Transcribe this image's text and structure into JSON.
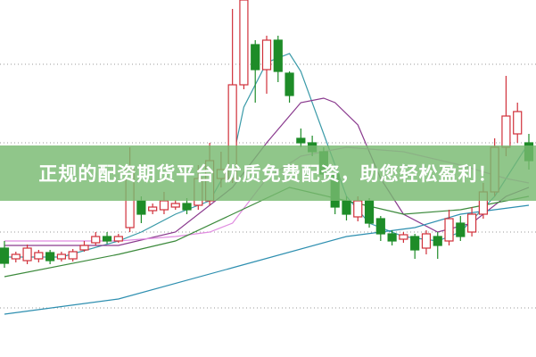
{
  "banner": {
    "text": "正规的配资期货平台 优质免费配资，助您轻松盈利！",
    "color": "#7ab970"
  },
  "chart_data": {
    "type": "candlestick",
    "title": "",
    "xlabel": "",
    "ylabel": "",
    "ylim": [
      0,
      400
    ],
    "grid": "dotted-horizontal",
    "colors": {
      "up": "#d0303a",
      "down": "#1e8c28"
    },
    "grid_levels": [
      328,
      240,
      140,
      55
    ],
    "candles": [
      [
        122,
        130,
        100,
        105
      ],
      [
        110,
        118,
        106,
        115
      ],
      [
        108,
        126,
        104,
        122
      ],
      [
        110,
        120,
        106,
        117
      ],
      [
        117,
        120,
        104,
        108
      ],
      [
        110,
        118,
        107,
        115
      ],
      [
        110,
        121,
        107,
        118
      ],
      [
        120,
        130,
        118,
        125
      ],
      [
        128,
        140,
        125,
        135
      ],
      [
        135,
        140,
        127,
        130
      ],
      [
        130,
        138,
        128,
        135
      ],
      [
        145,
        235,
        140,
        210
      ],
      [
        175,
        180,
        150,
        160
      ],
      [
        164,
        172,
        160,
        168
      ],
      [
        165,
        185,
        160,
        175
      ],
      [
        168,
        176,
        165,
        172
      ],
      [
        172,
        178,
        160,
        165
      ],
      [
        170,
        215,
        165,
        200
      ],
      [
        175,
        240,
        170,
        220
      ],
      [
        200,
        230,
        190,
        210
      ],
      [
        200,
        390,
        195,
        305
      ],
      [
        305,
        400,
        300,
        400
      ],
      [
        350,
        355,
        285,
        322
      ],
      [
        322,
        360,
        295,
        355
      ],
      [
        355,
        360,
        308,
        320
      ],
      [
        318,
        320,
        285,
        293
      ],
      [
        245,
        256,
        235,
        240
      ],
      [
        240,
        248,
        225,
        230
      ],
      [
        230,
        235,
        200,
        205
      ],
      [
        205,
        210,
        160,
        168
      ],
      [
        175,
        180,
        153,
        160
      ],
      [
        157,
        180,
        152,
        175
      ],
      [
        175,
        178,
        145,
        150
      ],
      [
        155,
        158,
        130,
        138
      ],
      [
        138,
        142,
        125,
        130
      ],
      [
        132,
        140,
        128,
        137
      ],
      [
        135,
        138,
        110,
        120
      ],
      [
        122,
        142,
        115,
        138
      ],
      [
        135,
        140,
        110,
        125
      ],
      [
        130,
        165,
        125,
        155
      ],
      [
        150,
        158,
        130,
        135
      ],
      [
        140,
        168,
        135,
        160
      ],
      [
        160,
        195,
        155,
        185
      ],
      [
        185,
        245,
        180,
        235
      ],
      [
        235,
        315,
        225,
        270
      ],
      [
        250,
        285,
        240,
        275
      ],
      [
        240,
        250,
        210,
        220
      ]
    ],
    "moving_averages": [
      {
        "color": "#3a9aa8",
        "points": [
          [
            0,
            112
          ],
          [
            5,
            112
          ],
          [
            10,
            130
          ],
          [
            12,
            140
          ],
          [
            15,
            160
          ],
          [
            18,
            175
          ],
          [
            20,
            220
          ],
          [
            21,
            280
          ],
          [
            23,
            330
          ],
          [
            25,
            340
          ],
          [
            26,
            320
          ],
          [
            28,
            250
          ],
          [
            30,
            180
          ],
          [
            32,
            150
          ],
          [
            35,
            135
          ],
          [
            38,
            130
          ],
          [
            40,
            140
          ],
          [
            43,
            180
          ],
          [
            46,
            240
          ]
        ]
      },
      {
        "color": "#8a3a8e",
        "points": [
          [
            0,
            125
          ],
          [
            10,
            125
          ],
          [
            15,
            140
          ],
          [
            20,
            190
          ],
          [
            23,
            240
          ],
          [
            26,
            285
          ],
          [
            28,
            290
          ],
          [
            29,
            285
          ],
          [
            31,
            260
          ],
          [
            33,
            200
          ],
          [
            35,
            160
          ],
          [
            38,
            140
          ],
          [
            41,
            150
          ],
          [
            44,
            180
          ],
          [
            46,
            190
          ]
        ]
      },
      {
        "color": "#e08ce0",
        "points": [
          [
            0,
            130
          ],
          [
            10,
            130
          ],
          [
            15,
            135
          ],
          [
            18,
            140
          ],
          [
            20,
            150
          ],
          [
            23,
            200
          ],
          [
            26,
            225
          ],
          [
            30,
            235
          ],
          [
            35,
            230
          ],
          [
            40,
            215
          ],
          [
            44,
            200
          ],
          [
            46,
            195
          ]
        ]
      },
      {
        "color": "#3c8a3c",
        "points": [
          [
            0,
            90
          ],
          [
            10,
            115
          ],
          [
            15,
            130
          ],
          [
            20,
            160
          ],
          [
            25,
            190
          ],
          [
            30,
            175
          ],
          [
            35,
            160
          ],
          [
            40,
            165
          ],
          [
            46,
            180
          ]
        ]
      },
      {
        "color": "#2e8fb0",
        "points": [
          [
            0,
            48
          ],
          [
            10,
            65
          ],
          [
            20,
            100
          ],
          [
            30,
            135
          ],
          [
            36,
            145
          ],
          [
            40,
            160
          ],
          [
            46,
            170
          ]
        ]
      }
    ]
  }
}
